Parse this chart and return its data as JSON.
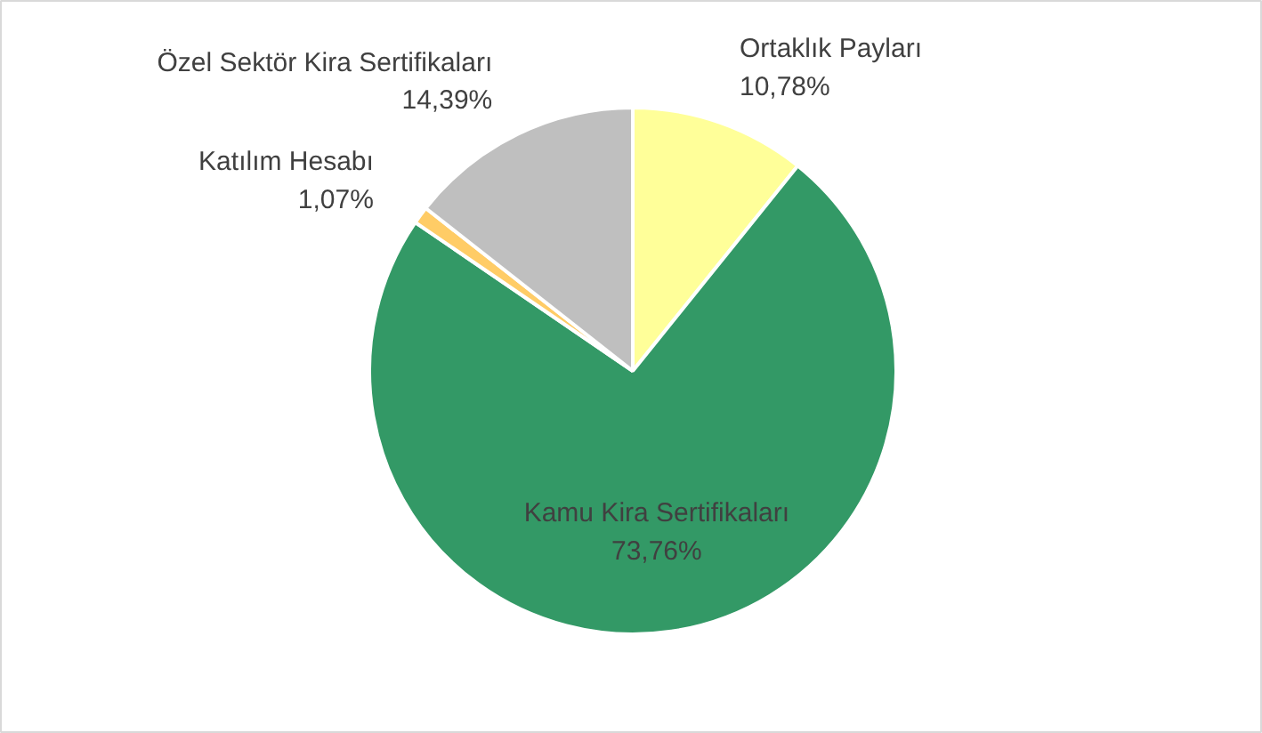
{
  "chart_data": {
    "type": "pie",
    "categories": [
      "Ortaklık Payları",
      "Kamu Kira Sertifikaları",
      "Katılım Hesabı",
      "Özel Sektör Kira Sertifikaları"
    ],
    "values": [
      10.78,
      73.76,
      1.07,
      14.39
    ],
    "colors": [
      "#ffff99",
      "#339966",
      "#ffcc66",
      "#bfbfbf"
    ],
    "value_labels": [
      "10,78%",
      "73,76%",
      "1,07%",
      "14,39%"
    ]
  }
}
